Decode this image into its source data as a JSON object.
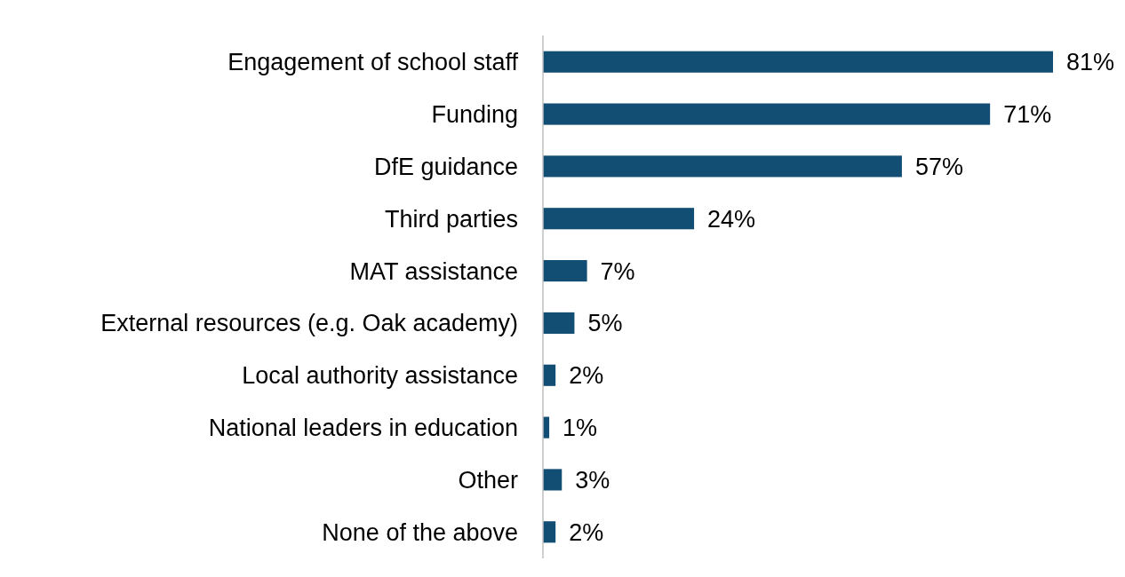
{
  "chart_data": {
    "type": "bar",
    "orientation": "horizontal",
    "categories": [
      "Engagement of school staff",
      "Funding",
      "DfE guidance",
      "Third parties",
      "MAT assistance",
      "External resources (e.g. Oak academy)",
      "Local authority assistance",
      "National leaders in education",
      "Other",
      "None of the above"
    ],
    "values": [
      81,
      71,
      57,
      24,
      7,
      5,
      2,
      1,
      3,
      2
    ],
    "value_labels": [
      "81%",
      "71%",
      "57%",
      "24%",
      "7%",
      "5%",
      "2%",
      "1%",
      "3%",
      "2%"
    ],
    "color": "#124e73"
  }
}
